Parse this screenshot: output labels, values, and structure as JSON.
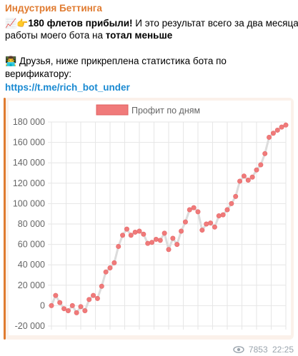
{
  "sender": "Индустрия Беттинга",
  "message": {
    "line1_emoji": "📈👉",
    "line1_bold": "180 флетов прибыли!",
    "line1_rest": " И это результат всего за два месяца",
    "line2_text": "работы моего бота на ",
    "line2_bold": "тотал меньше",
    "line3_emoji": "👨‍💻",
    "line3_text": " Друзья, ниже прикреплена статистика бота по",
    "line4_text": "верификатору:",
    "link": "https://t.me/rich_bot_under"
  },
  "footer": {
    "eye_icon": "eye-icon",
    "views": "7853",
    "time": "22:25"
  },
  "colors": {
    "sender": "#e07b30",
    "link": "#1a8ad2",
    "series": "#f07a7a",
    "accent_bar": "#e07b30"
  },
  "chart_data": {
    "type": "line",
    "title": "",
    "xlabel": "",
    "ylabel": "",
    "ylim": [
      -20000,
      180000
    ],
    "yticks": [
      "180 000",
      "160 000",
      "140 000",
      "120 000",
      "100 000",
      "80 000",
      "60 000",
      "40 000",
      "20 000",
      "0",
      "-20 000"
    ],
    "ytick_values": [
      180000,
      160000,
      140000,
      120000,
      100000,
      80000,
      60000,
      40000,
      20000,
      0,
      -20000
    ],
    "grid": true,
    "legend": "top-center",
    "series": [
      {
        "name": "Профит по дням",
        "values": [
          0,
          10000,
          3000,
          -3000,
          -5000,
          0,
          -7000,
          -1000,
          -5000,
          6000,
          10000,
          7000,
          19000,
          33000,
          37000,
          42000,
          58000,
          69000,
          75000,
          69000,
          72000,
          73000,
          70000,
          61000,
          62000,
          65000,
          64000,
          71000,
          55000,
          66000,
          60000,
          73000,
          82000,
          94000,
          96000,
          92000,
          74000,
          80000,
          81000,
          77000,
          88000,
          89000,
          94000,
          100000,
          107000,
          122000,
          127000,
          123000,
          126000,
          133000,
          138000,
          149000,
          165000,
          169000,
          172000,
          175000,
          177000
        ]
      }
    ]
  }
}
